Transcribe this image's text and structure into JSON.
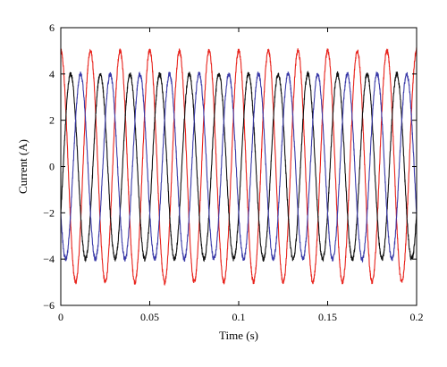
{
  "chart_data": {
    "type": "line",
    "xlabel": "Time (s)",
    "ylabel": "Current (A)",
    "xlim": [
      0,
      0.2
    ],
    "ylim": [
      -6,
      6
    ],
    "x_ticks": [
      "0",
      "0.05",
      "0.1",
      "0.15",
      "0.2"
    ],
    "x_tick_values": [
      0,
      0.05,
      0.1,
      0.15,
      0.2
    ],
    "y_ticks": [
      "−6",
      "−4",
      "−2",
      "0",
      "2",
      "4",
      "6"
    ],
    "y_tick_values": [
      -6,
      -4,
      -2,
      0,
      2,
      4,
      6
    ],
    "grid": false,
    "frequency_hz": 60,
    "series": [
      {
        "color": "#e8231c",
        "amplitude": 5.0,
        "phase_deg": 90
      },
      {
        "color": "#111111",
        "amplitude": 4.0,
        "phase_deg": -30
      },
      {
        "color": "#3a3aa8",
        "amplitude": 4.0,
        "phase_deg": 210
      }
    ]
  }
}
